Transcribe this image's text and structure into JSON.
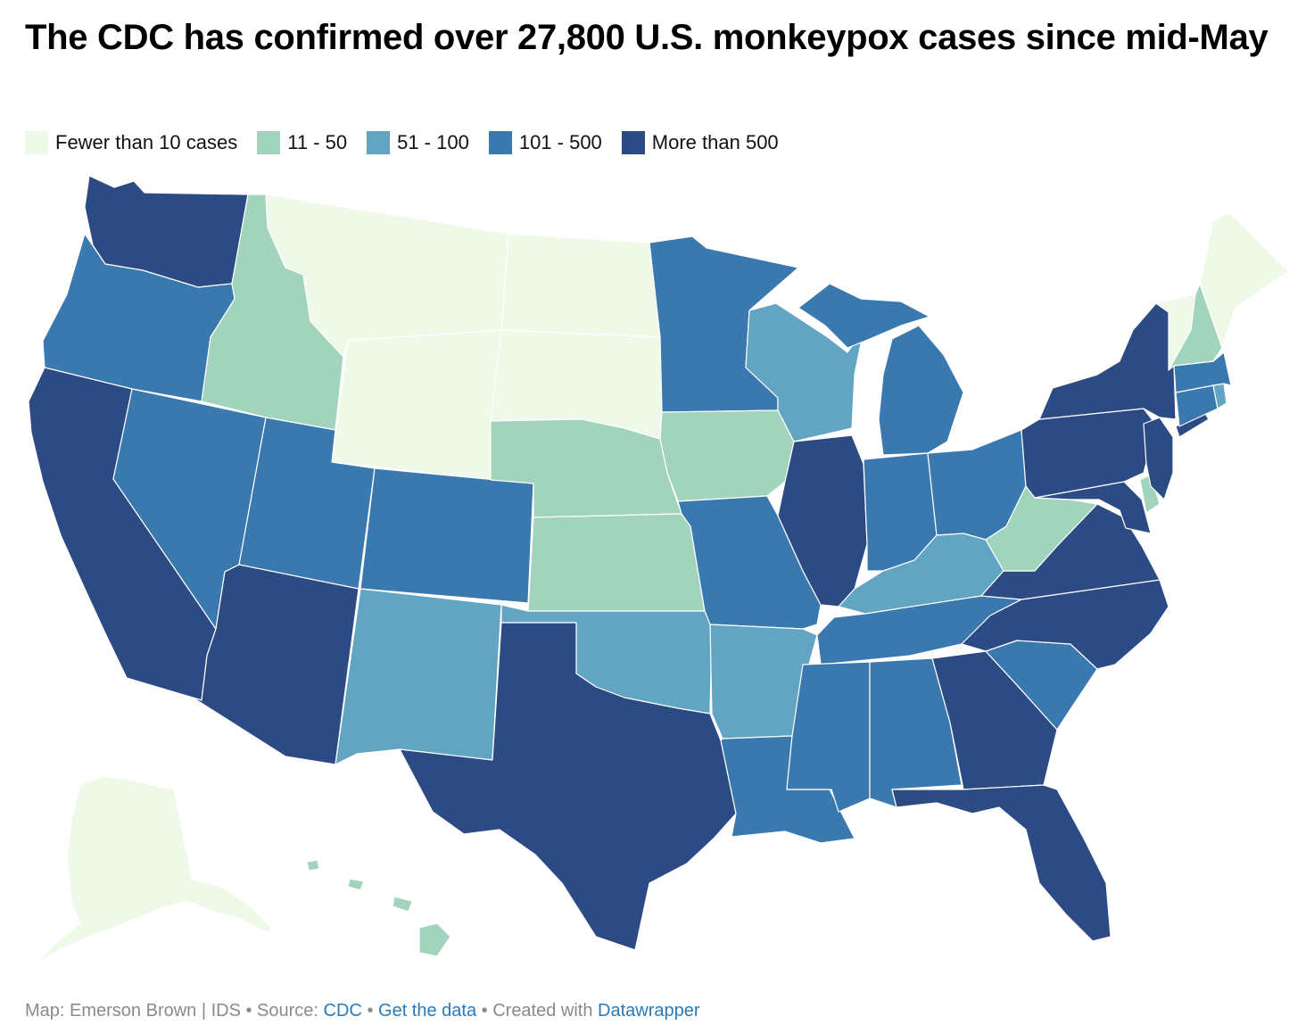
{
  "title": "The CDC has confirmed over 27,800 U.S. monkeypox cases since mid-May",
  "legend": [
    {
      "label": "Fewer than 10 cases",
      "color": "#eff9e7",
      "bin": "lt10"
    },
    {
      "label": "11 - 50",
      "color": "#a2d4bd",
      "bin": "11-50"
    },
    {
      "label": "51 - 100",
      "color": "#62a5c3",
      "bin": "51-100"
    },
    {
      "label": "101 - 500",
      "color": "#3a78b0",
      "bin": "101-500"
    },
    {
      "label": "More than 500",
      "color": "#2c4a84",
      "bin": "gt500"
    }
  ],
  "states": {
    "WA": "gt500",
    "OR": "101-500",
    "CA": "gt500",
    "NV": "101-500",
    "ID": "11-50",
    "MT": "lt10",
    "WY": "lt10",
    "UT": "101-500",
    "AZ": "gt500",
    "CO": "101-500",
    "NM": "51-100",
    "ND": "lt10",
    "SD": "lt10",
    "NE": "11-50",
    "KS": "11-50",
    "OK": "51-100",
    "TX": "gt500",
    "MN": "101-500",
    "IA": "11-50",
    "MO": "101-500",
    "AR": "51-100",
    "LA": "101-500",
    "WI": "51-100",
    "IL": "gt500",
    "MI": "101-500",
    "IN": "101-500",
    "OH": "101-500",
    "KY": "51-100",
    "TN": "101-500",
    "MS": "101-500",
    "AL": "101-500",
    "GA": "gt500",
    "FL": "gt500",
    "SC": "101-500",
    "NC": "gt500",
    "VA": "gt500",
    "WV": "11-50",
    "MD": "gt500",
    "DE": "11-50",
    "PA": "gt500",
    "NJ": "gt500",
    "NY": "gt500",
    "CT": "101-500",
    "RI": "51-100",
    "MA": "101-500",
    "VT": "lt10",
    "NH": "11-50",
    "ME": "lt10",
    "AK": "lt10",
    "HI": "11-50"
  },
  "footer": {
    "prefix": "Map: Emerson Brown | IDS • Source: ",
    "source_link": "CDC",
    "sep1": " • ",
    "data_link": "Get the data",
    "sep2": " • Created with ",
    "tool_link": "Datawrapper"
  }
}
